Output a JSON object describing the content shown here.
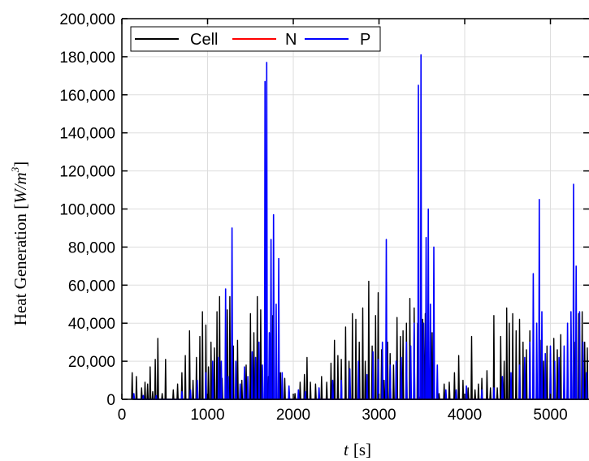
{
  "chart_data": {
    "type": "line",
    "xlabel": "t [s]",
    "xlabel_var": "t",
    "xlabel_unit": "[s]",
    "ylabel": "Heat Generation [W/m3]",
    "ylabel_main": "Heat Generation [",
    "ylabel_unit": "W/m",
    "ylabel_exp": "3",
    "ylabel_close": "]",
    "xlim": [
      0,
      5450
    ],
    "ylim": [
      0,
      200000
    ],
    "x_ticks": [
      0,
      1000,
      2000,
      3000,
      4000,
      5000
    ],
    "x_tick_labels": [
      "0",
      "1000",
      "2000",
      "3000",
      "4000",
      "5000"
    ],
    "y_ticks": [
      0,
      20000,
      40000,
      60000,
      80000,
      100000,
      120000,
      140000,
      160000,
      180000,
      200000
    ],
    "y_tick_labels": [
      "0",
      "20,000",
      "40,000",
      "60,000",
      "80,000",
      "100,000",
      "120,000",
      "140,000",
      "160,000",
      "180,000",
      "200,000"
    ],
    "grid": true,
    "legend_position": "top-left",
    "series": [
      {
        "name": "Cell",
        "color": "#000000",
        "peaks": [
          [
            120,
            14000
          ],
          [
            170,
            12000
          ],
          [
            230,
            6000
          ],
          [
            270,
            9000
          ],
          [
            300,
            8000
          ],
          [
            330,
            17000
          ],
          [
            360,
            4000
          ],
          [
            390,
            21000
          ],
          [
            420,
            32000
          ],
          [
            470,
            3000
          ],
          [
            510,
            21000
          ],
          [
            600,
            5000
          ],
          [
            650,
            8000
          ],
          [
            700,
            14000
          ],
          [
            740,
            23000
          ],
          [
            790,
            36000
          ],
          [
            830,
            10000
          ],
          [
            870,
            22000
          ],
          [
            910,
            33000
          ],
          [
            940,
            46000
          ],
          [
            980,
            39000
          ],
          [
            1010,
            17000
          ],
          [
            1040,
            30000
          ],
          [
            1080,
            27000
          ],
          [
            1110,
            46000
          ],
          [
            1140,
            54000
          ],
          [
            1170,
            11000
          ],
          [
            1230,
            47000
          ],
          [
            1260,
            54000
          ],
          [
            1300,
            28000
          ],
          [
            1350,
            31000
          ],
          [
            1400,
            10000
          ],
          [
            1450,
            18000
          ],
          [
            1500,
            45000
          ],
          [
            1540,
            35000
          ],
          [
            1580,
            54000
          ],
          [
            1620,
            47000
          ],
          [
            1710,
            12000
          ],
          [
            1760,
            44000
          ],
          [
            1800,
            30000
          ],
          [
            1850,
            14000
          ],
          [
            1900,
            11000
          ],
          [
            1950,
            5000
          ],
          [
            2020,
            3000
          ],
          [
            2080,
            9000
          ],
          [
            2130,
            13000
          ],
          [
            2160,
            22000
          ],
          [
            2200,
            9000
          ],
          [
            2260,
            8000
          ],
          [
            2330,
            12000
          ],
          [
            2390,
            9000
          ],
          [
            2440,
            19000
          ],
          [
            2480,
            31000
          ],
          [
            2520,
            23000
          ],
          [
            2560,
            21000
          ],
          [
            2610,
            38000
          ],
          [
            2650,
            20000
          ],
          [
            2690,
            45000
          ],
          [
            2730,
            42000
          ],
          [
            2770,
            30000
          ],
          [
            2810,
            48000
          ],
          [
            2840,
            20000
          ],
          [
            2880,
            62000
          ],
          [
            2920,
            28000
          ],
          [
            2960,
            44000
          ],
          [
            2990,
            56000
          ],
          [
            3030,
            26000
          ],
          [
            3060,
            10000
          ],
          [
            3100,
            30000
          ],
          [
            3130,
            24000
          ],
          [
            3170,
            18000
          ],
          [
            3210,
            43000
          ],
          [
            3250,
            33000
          ],
          [
            3280,
            36000
          ],
          [
            3320,
            40000
          ],
          [
            3360,
            53000
          ],
          [
            3410,
            48000
          ],
          [
            3450,
            40000
          ],
          [
            3510,
            42000
          ],
          [
            3540,
            45000
          ],
          [
            3620,
            35000
          ],
          [
            3700,
            3000
          ],
          [
            3760,
            8000
          ],
          [
            3820,
            9000
          ],
          [
            3880,
            14000
          ],
          [
            3930,
            23000
          ],
          [
            3980,
            10000
          ],
          [
            4040,
            6000
          ],
          [
            4080,
            33000
          ],
          [
            4120,
            5000
          ],
          [
            4160,
            8000
          ],
          [
            4200,
            11000
          ],
          [
            4260,
            15000
          ],
          [
            4300,
            6000
          ],
          [
            4340,
            44000
          ],
          [
            4380,
            6000
          ],
          [
            4420,
            33000
          ],
          [
            4460,
            20000
          ],
          [
            4490,
            48000
          ],
          [
            4520,
            40000
          ],
          [
            4560,
            45000
          ],
          [
            4600,
            36000
          ],
          [
            4640,
            42000
          ],
          [
            4680,
            30000
          ],
          [
            4720,
            26000
          ],
          [
            4760,
            36000
          ],
          [
            4800,
            38000
          ],
          [
            4840,
            22000
          ],
          [
            4880,
            31000
          ],
          [
            4920,
            20000
          ],
          [
            4960,
            28000
          ],
          [
            5000,
            24000
          ],
          [
            5040,
            32000
          ],
          [
            5080,
            26000
          ],
          [
            5120,
            34000
          ],
          [
            5160,
            14000
          ],
          [
            5200,
            18000
          ],
          [
            5240,
            43000
          ],
          [
            5280,
            30000
          ],
          [
            5330,
            45000
          ],
          [
            5370,
            46000
          ],
          [
            5400,
            30000
          ],
          [
            5430,
            27000
          ]
        ]
      },
      {
        "name": "N",
        "color": "#ff0000",
        "peaks": [
          [
            1670,
            1000
          ],
          [
            3480,
            1200
          ],
          [
            5280,
            900
          ]
        ]
      },
      {
        "name": "P",
        "color": "#0000ff",
        "peaks": [
          [
            140,
            3000
          ],
          [
            250,
            2000
          ],
          [
            400,
            2000
          ],
          [
            700,
            4000
          ],
          [
            800,
            5000
          ],
          [
            880,
            10000
          ],
          [
            980,
            14000
          ],
          [
            1060,
            20000
          ],
          [
            1130,
            22000
          ],
          [
            1160,
            20000
          ],
          [
            1210,
            58000
          ],
          [
            1240,
            12000
          ],
          [
            1285,
            90000
          ],
          [
            1330,
            20000
          ],
          [
            1380,
            8000
          ],
          [
            1430,
            17000
          ],
          [
            1470,
            12000
          ],
          [
            1520,
            25000
          ],
          [
            1560,
            22000
          ],
          [
            1600,
            30000
          ],
          [
            1640,
            18000
          ],
          [
            1670,
            167000
          ],
          [
            1690,
            177000
          ],
          [
            1720,
            35000
          ],
          [
            1740,
            84000
          ],
          [
            1770,
            97000
          ],
          [
            1800,
            50000
          ],
          [
            1830,
            74000
          ],
          [
            1870,
            14000
          ],
          [
            1950,
            7000
          ],
          [
            2060,
            5000
          ],
          [
            2140,
            4000
          ],
          [
            2300,
            6000
          ],
          [
            2460,
            10000
          ],
          [
            2560,
            10000
          ],
          [
            2660,
            16000
          ],
          [
            2760,
            20000
          ],
          [
            2860,
            13000
          ],
          [
            2930,
            25000
          ],
          [
            2990,
            21000
          ],
          [
            3040,
            30000
          ],
          [
            3085,
            84000
          ],
          [
            3130,
            18000
          ],
          [
            3200,
            20000
          ],
          [
            3260,
            22000
          ],
          [
            3320,
            30000
          ],
          [
            3370,
            28000
          ],
          [
            3410,
            40000
          ],
          [
            3460,
            165000
          ],
          [
            3490,
            181000
          ],
          [
            3520,
            40000
          ],
          [
            3550,
            85000
          ],
          [
            3575,
            100000
          ],
          [
            3600,
            50000
          ],
          [
            3640,
            80000
          ],
          [
            3680,
            18000
          ],
          [
            3780,
            5000
          ],
          [
            3900,
            5000
          ],
          [
            4020,
            7000
          ],
          [
            4200,
            5000
          ],
          [
            4340,
            6000
          ],
          [
            4440,
            12000
          ],
          [
            4540,
            14000
          ],
          [
            4640,
            18000
          ],
          [
            4700,
            22000
          ],
          [
            4760,
            30000
          ],
          [
            4800,
            66000
          ],
          [
            4840,
            40000
          ],
          [
            4870,
            105000
          ],
          [
            4900,
            46000
          ],
          [
            4940,
            24000
          ],
          [
            5000,
            28000
          ],
          [
            5050,
            20000
          ],
          [
            5100,
            22000
          ],
          [
            5160,
            28000
          ],
          [
            5200,
            40000
          ],
          [
            5240,
            46000
          ],
          [
            5270,
            113000
          ],
          [
            5300,
            70000
          ],
          [
            5340,
            46000
          ],
          [
            5380,
            30000
          ],
          [
            5420,
            14000
          ]
        ]
      }
    ]
  }
}
